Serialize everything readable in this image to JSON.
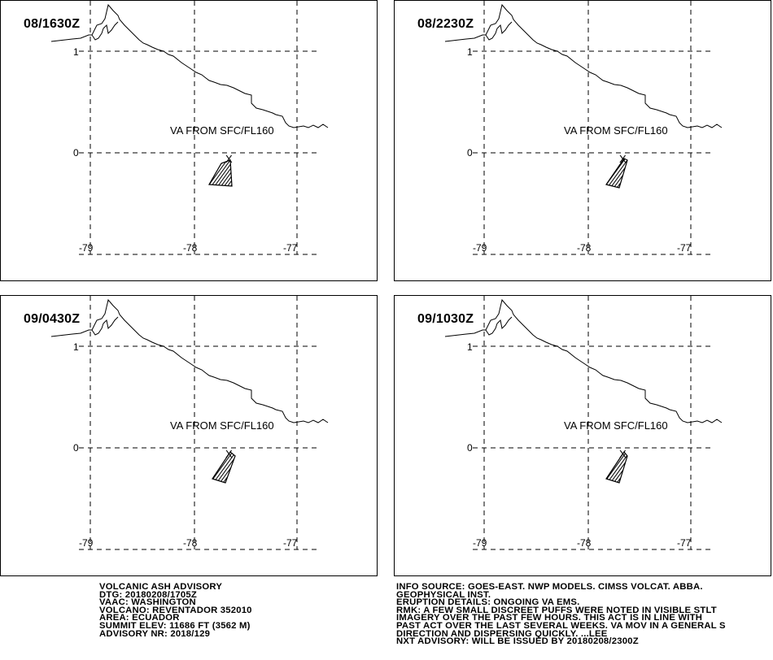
{
  "panels": [
    {
      "time": "08/1630Z",
      "label": "VA FROM SFC/FL160"
    },
    {
      "time": "08/2230Z",
      "label": "VA FROM SFC/FL160"
    },
    {
      "time": "09/0430Z",
      "label": "VA FROM SFC/FL160"
    },
    {
      "time": "09/1030Z",
      "label": "VA FROM SFC/FL160"
    }
  ],
  "axes": {
    "lat_labels": [
      "1",
      "0"
    ],
    "lon_labels": [
      "-79",
      "-78",
      "-77"
    ],
    "latitudes": [
      1,
      0
    ],
    "longitudes": [
      -79,
      -78,
      -77
    ]
  },
  "volcano_marker": "X",
  "advisory_left": [
    "VOLCANIC ASH ADVISORY",
    "DTG: 20180208/1705Z",
    "VAAC: WASHINGTON",
    "VOLCANO: REVENTADOR 352010",
    "AREA: ECUADOR",
    "SUMMIT ELEV: 11686 FT (3562 M)",
    "ADVISORY NR: 2018/129"
  ],
  "advisory_right": [
    "INFO SOURCE: GOES-EAST. NWP MODELS. CIMSS VOLCAT. ABBA.",
    "GEOPHYSICAL INST.",
    "ERUPTION DETAILS: ONGOING VA EMS.",
    "RMK: A FEW SMALL DISCREET PUFFS WERE NOTED IN VISIBLE STLT",
    "IMAGERY OVER THE PAST FEW HOURS. THIS ACT IS IN LINE WITH",
    "PAST ACT OVER THE LAST SEVERAL WEEKS. VA MOV IN A GENERAL S",
    "DIRECTION AND DISPERSING QUICKLY. ...LEE",
    "NXT ADVISORY: WILL BE ISSUED BY 20180208/2300Z"
  ],
  "colors": {
    "line": "#000000",
    "background": "#ffffff"
  }
}
